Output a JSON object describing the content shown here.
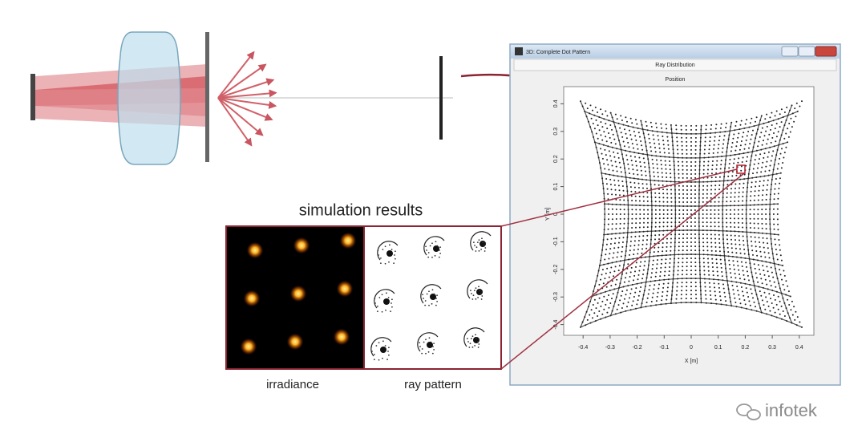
{
  "caption": "simulation results",
  "panels": {
    "irradiance": "irradiance",
    "ray_pattern": "ray pattern"
  },
  "window": {
    "title": "3D: Complete Dot Pattern",
    "header": "Ray Distribution",
    "subheader": "Position",
    "plot": {
      "x_label": "X [m]",
      "y_label": "Y [m]",
      "xticks": [
        -0.4,
        -0.3,
        -0.2,
        -0.1,
        0,
        0.1,
        0.2,
        0.3,
        0.4
      ],
      "yticks": [
        -0.4,
        -0.3,
        -0.2,
        -0.1,
        0,
        0.1,
        0.2,
        0.3,
        0.4
      ]
    }
  },
  "watermark": "infotek"
}
